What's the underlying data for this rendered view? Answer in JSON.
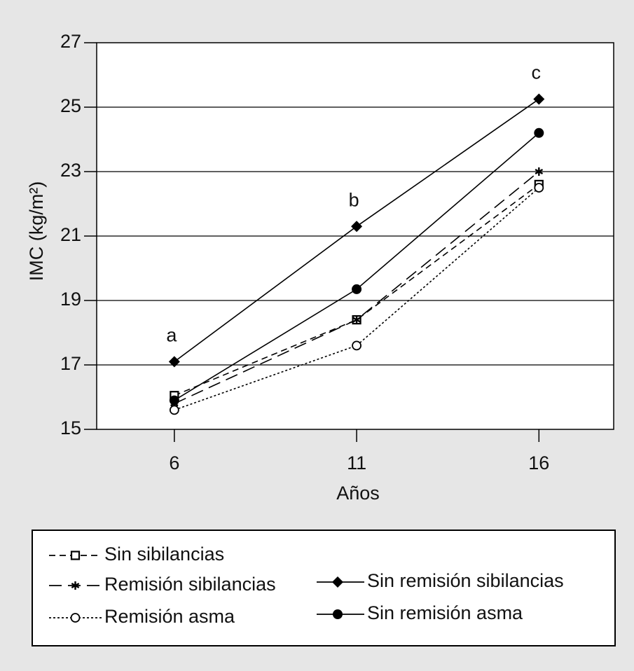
{
  "chart_data": {
    "type": "line",
    "xlabel": "Años",
    "ylabel": "IMC (kg/m²)",
    "x": [
      6,
      11,
      16
    ],
    "xlim": [
      3.87,
      18.05
    ],
    "xticks": [
      6,
      11,
      16
    ],
    "ylim": [
      15,
      27
    ],
    "yticks": [
      15,
      17,
      19,
      21,
      23,
      25,
      27
    ],
    "grid": true,
    "annotations": [
      "a",
      "b",
      "c"
    ],
    "series": [
      {
        "name": "Sin sibilancias",
        "color": "#000000",
        "line_style": "dashed",
        "marker": "square-open",
        "values": [
          16.05,
          18.4,
          22.6
        ]
      },
      {
        "name": "Remisión sibilancias",
        "color": "#000000",
        "line_style": "long-dashed",
        "marker": "star",
        "values": [
          15.8,
          18.4,
          23.0
        ]
      },
      {
        "name": "Remisión asma",
        "color": "#000000",
        "line_style": "dotted",
        "marker": "circle-open",
        "values": [
          15.6,
          17.6,
          22.5
        ]
      },
      {
        "name": "Sin remisión sibilancias",
        "color": "#000000",
        "line_style": "solid",
        "marker": "diamond",
        "values": [
          17.1,
          21.3,
          25.25
        ]
      },
      {
        "name": "Sin remisión asma",
        "color": "#000000",
        "line_style": "solid",
        "marker": "circle",
        "values": [
          15.9,
          19.35,
          24.2
        ]
      }
    ]
  }
}
